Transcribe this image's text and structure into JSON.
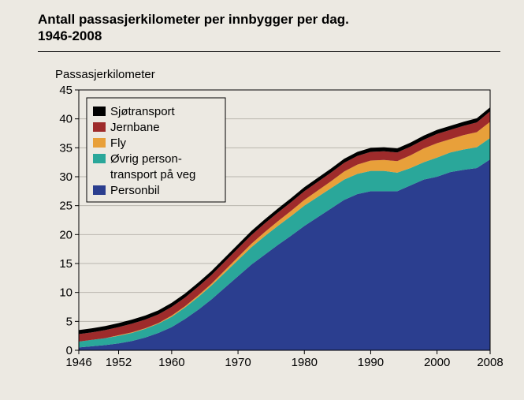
{
  "title_line1": "Antall passasjerkilometer per innbygger per dag.",
  "title_line2": "1946-2008",
  "y_axis_title": "Passasjerkilometer",
  "chart": {
    "type": "stacked-area",
    "background_color": "#ece9e2",
    "grid_color": "#b9b5ad",
    "frame_color": "#000000",
    "xlim": [
      1946,
      2008
    ],
    "ylim": [
      0,
      45
    ],
    "ytick_step": 5,
    "yticks": [
      0,
      5,
      10,
      15,
      20,
      25,
      30,
      35,
      40,
      45
    ],
    "xticks": [
      1946,
      1952,
      1960,
      1970,
      1980,
      1990,
      2000,
      2008
    ],
    "label_fontsize": 15,
    "series_order_bottom_to_top": [
      "personbil",
      "ovrig",
      "fly",
      "jernbane",
      "sjotransport"
    ],
    "colors": {
      "personbil": "#2b3e8f",
      "ovrig": "#2aa79a",
      "fly": "#e8a03a",
      "jernbane": "#9e2b2b",
      "sjotransport": "#000000"
    },
    "legend": {
      "position": "inside-top-left",
      "box_stroke": "#000000",
      "box_fill": "#ece9e2",
      "items": [
        {
          "key": "sjotransport",
          "label": "Sjøtransport"
        },
        {
          "key": "jernbane",
          "label": "Jernbane"
        },
        {
          "key": "fly",
          "label": "Fly"
        },
        {
          "key": "ovrig",
          "label_line1": "Øvrig person-",
          "label_line2": "transport på veg"
        },
        {
          "key": "personbil",
          "label": "Personbil"
        }
      ]
    },
    "years": [
      1946,
      1948,
      1950,
      1952,
      1954,
      1956,
      1958,
      1960,
      1962,
      1964,
      1966,
      1968,
      1970,
      1972,
      1974,
      1976,
      1978,
      1980,
      1982,
      1984,
      1986,
      1988,
      1990,
      1992,
      1994,
      1996,
      1998,
      2000,
      2002,
      2004,
      2006,
      2008
    ],
    "series": {
      "personbil": [
        0.5,
        0.7,
        0.9,
        1.2,
        1.6,
        2.2,
        3.0,
        4.0,
        5.4,
        7.0,
        8.8,
        10.8,
        12.8,
        14.8,
        16.5,
        18.2,
        19.8,
        21.5,
        23.0,
        24.5,
        26.0,
        27.0,
        27.5,
        27.5,
        27.5,
        28.5,
        29.5,
        30.0,
        30.8,
        31.2,
        31.5,
        33.0
      ],
      "ovrig": [
        1.0,
        1.1,
        1.2,
        1.3,
        1.4,
        1.5,
        1.6,
        1.8,
        2.0,
        2.2,
        2.4,
        2.6,
        2.8,
        3.0,
        3.2,
        3.3,
        3.4,
        3.5,
        3.5,
        3.5,
        3.5,
        3.5,
        3.5,
        3.5,
        3.2,
        3.0,
        3.0,
        3.3,
        3.4,
        3.5,
        3.6,
        3.7
      ],
      "fly": [
        0.0,
        0.0,
        0.0,
        0.1,
        0.1,
        0.1,
        0.1,
        0.2,
        0.2,
        0.3,
        0.3,
        0.4,
        0.5,
        0.6,
        0.7,
        0.8,
        0.9,
        1.0,
        1.1,
        1.2,
        1.4,
        1.6,
        1.8,
        1.9,
        2.0,
        2.2,
        2.4,
        2.5,
        2.3,
        2.5,
        2.6,
        2.8
      ],
      "jernbane": [
        1.3,
        1.3,
        1.4,
        1.4,
        1.5,
        1.5,
        1.5,
        1.5,
        1.5,
        1.5,
        1.5,
        1.5,
        1.5,
        1.5,
        1.5,
        1.5,
        1.5,
        1.5,
        1.5,
        1.5,
        1.5,
        1.5,
        1.5,
        1.5,
        1.5,
        1.5,
        1.5,
        1.6,
        1.6,
        1.6,
        1.7,
        1.8
      ],
      "sjotransport": [
        0.7,
        0.7,
        0.7,
        0.7,
        0.7,
        0.7,
        0.7,
        0.7,
        0.7,
        0.7,
        0.7,
        0.7,
        0.7,
        0.7,
        0.7,
        0.7,
        0.7,
        0.7,
        0.7,
        0.7,
        0.7,
        0.7,
        0.7,
        0.7,
        0.7,
        0.7,
        0.7,
        0.7,
        0.7,
        0.7,
        0.7,
        0.7
      ]
    }
  }
}
